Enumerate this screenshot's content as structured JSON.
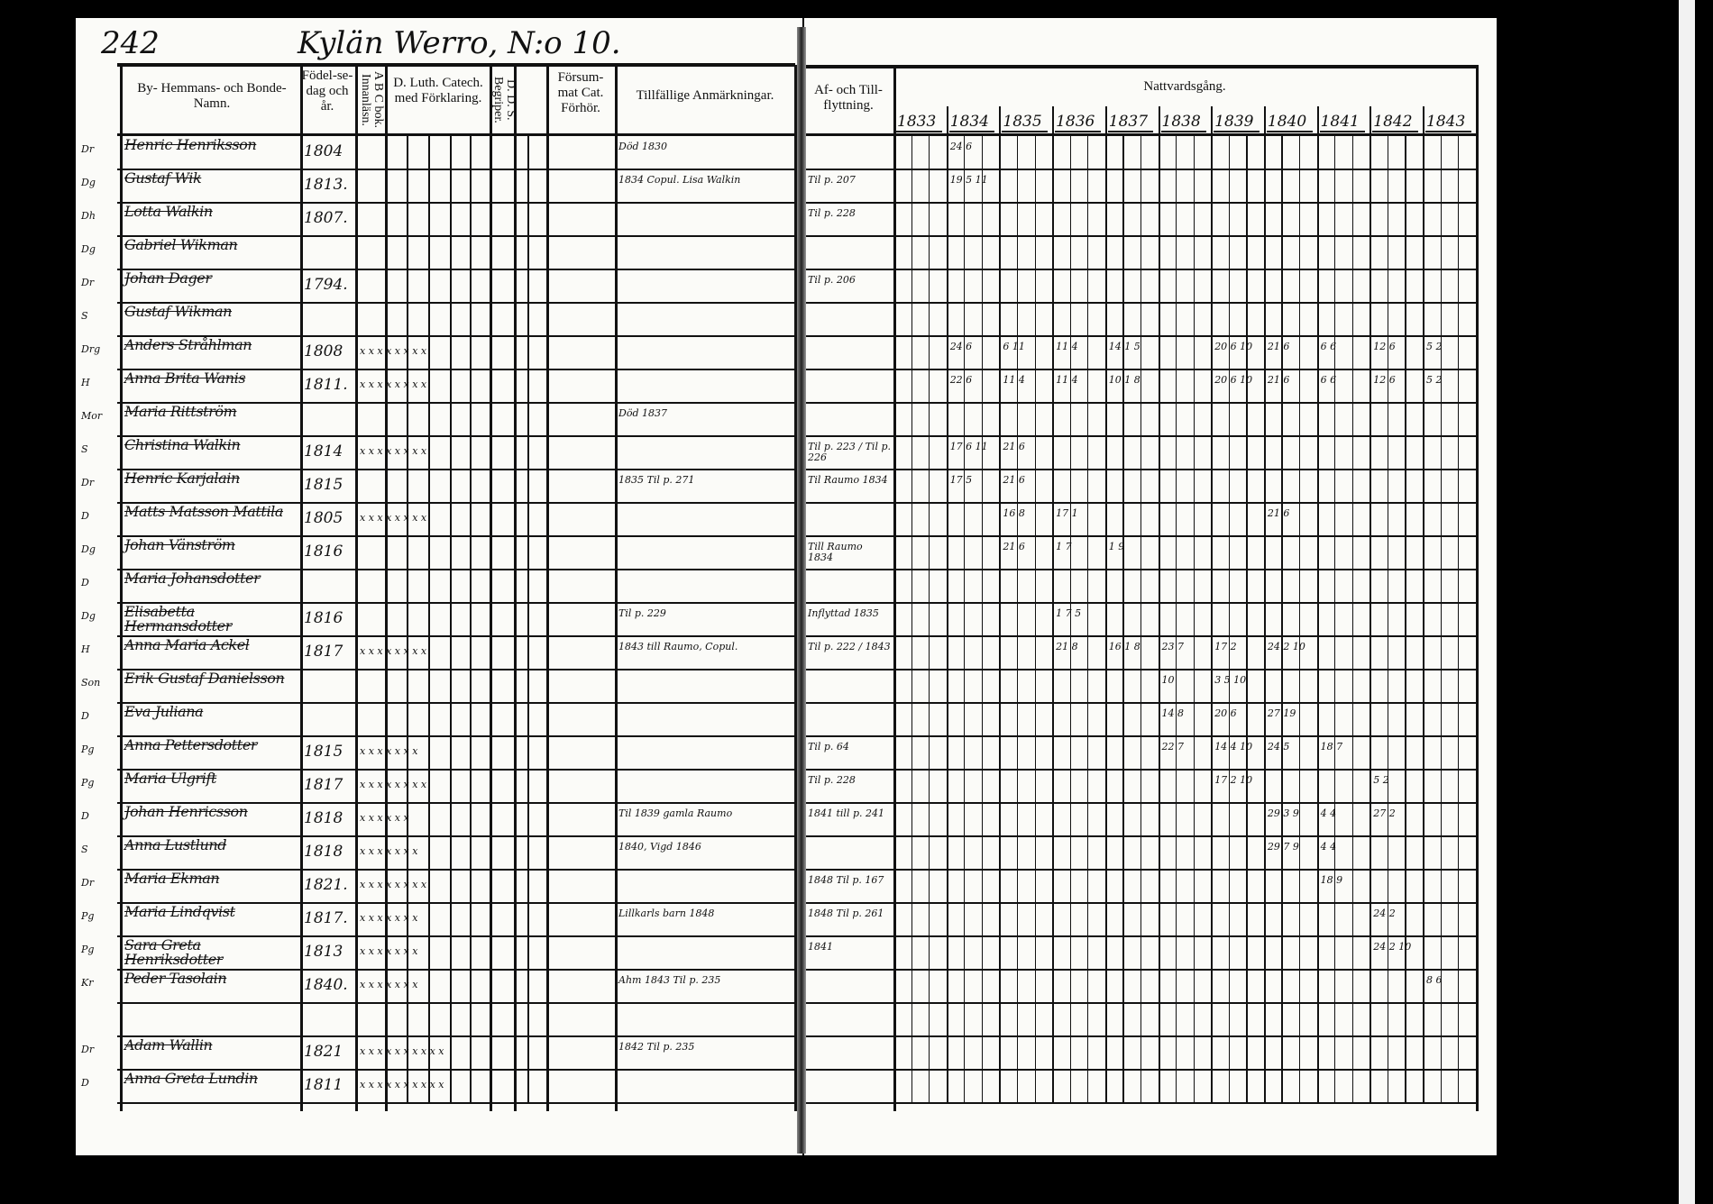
{
  "page_number": "242",
  "heading_handwritten": "Kylän Werro, N:o 10.",
  "left_headers": {
    "name": "By- Hemmans- och Bonde-Namn.",
    "birth": "Födel-se-dag och år.",
    "abc": "A B C bok. Innanläsn.",
    "catech": "D. Luth. Catech. med Förklaring.",
    "dds": "D. D. S. Begriper.",
    "missed": "Försum-mat Cat. Förhör.",
    "remarks": "Tillfällige Anmärkningar."
  },
  "right_headers": {
    "moves": "Af- och Till-flyttning.",
    "communion": "Nattvardsgång.",
    "years": [
      "1833",
      "1834",
      "1835",
      "1836",
      "1837",
      "1838",
      "1839",
      "1840",
      "1841",
      "1842",
      "1843"
    ]
  },
  "rows": [
    {
      "prefix": "Dr",
      "name": "Henric Henriksson",
      "birth": "1804",
      "marks": "",
      "remark": "Död 1830",
      "move": "",
      "comm": {
        "1": "24 6"
      }
    },
    {
      "prefix": "Dg",
      "name": "Gustaf Wik",
      "birth": "1813.",
      "marks": "",
      "remark": "1834 Copul. Lisa Walkin",
      "move": "Til p. 207",
      "comm": {
        "1": "19 5 11"
      }
    },
    {
      "prefix": "Dh",
      "name": "Lotta Walkin",
      "birth": "1807.",
      "marks": "",
      "remark": "",
      "move": "Til p. 228",
      "comm": {}
    },
    {
      "prefix": "Dg",
      "name": "Gabriel Wikman",
      "birth": "",
      "marks": "",
      "remark": "",
      "move": "",
      "comm": {}
    },
    {
      "prefix": "Dr",
      "name": "Johan Dager",
      "birth": "1794.",
      "marks": "",
      "remark": "",
      "move": "Til p. 206",
      "comm": {}
    },
    {
      "prefix": "S",
      "name": "Gustaf Wikman",
      "birth": "",
      "marks": "",
      "remark": "",
      "move": "",
      "comm": {}
    },
    {
      "prefix": "Drg",
      "name": "Anders Stråhlman",
      "birth": "1808",
      "marks": "x x x x x x x x",
      "remark": "",
      "move": "",
      "comm": {
        "1": "24 6",
        "2": "6 11",
        "3": "11 4",
        "4": "14 1 5",
        "6": "20 6 10",
        "7": "21 6",
        "8": "6 6",
        "9": "12 6",
        "10": "5 2"
      }
    },
    {
      "prefix": "H",
      "name": "Anna Brita Wanis",
      "birth": "1811.",
      "marks": "x x x x x x x x",
      "remark": "",
      "move": "",
      "comm": {
        "1": "22 6",
        "2": "11 4",
        "3": "11 4",
        "4": "10 1 8",
        "6": "20 6 10",
        "7": "21 6",
        "8": "6 6",
        "9": "12 6",
        "10": "5 2"
      }
    },
    {
      "prefix": "Mor",
      "name": "Maria Rittström",
      "birth": "",
      "marks": "",
      "remark": "Död 1837",
      "move": "",
      "comm": {}
    },
    {
      "prefix": "S",
      "name": "Christina Walkin",
      "birth": "1814",
      "marks": "x x x x x x x x",
      "remark": "",
      "move": "Til p. 223 / Til p. 226",
      "comm": {
        "1": "17 6 11",
        "2": "21 6"
      }
    },
    {
      "prefix": "Dr",
      "name": "Henric Karjalain",
      "birth": "1815",
      "marks": "",
      "remark": "1835 Til p. 271",
      "move": "Til Raumo 1834",
      "comm": {
        "1": "17 5",
        "2": "21 6"
      }
    },
    {
      "prefix": "D",
      "name": "Matts Matsson Mattila",
      "birth": "1805",
      "marks": "x x x x x x x x",
      "remark": "",
      "move": "",
      "comm": {
        "2": "16 8",
        "3": "17 1",
        "7": "21 6"
      }
    },
    {
      "prefix": "Dg",
      "name": "Johan Vänström",
      "birth": "1816",
      "marks": "",
      "remark": "",
      "move": "Till Raumo 1834",
      "comm": {
        "2": "21 6",
        "3": "1 7",
        "4": "1 9"
      }
    },
    {
      "prefix": "D",
      "name": "Maria Johansdotter",
      "birth": "",
      "marks": "",
      "remark": "",
      "move": "",
      "comm": {}
    },
    {
      "prefix": "Dg",
      "name": "Elisabetta Hermansdotter",
      "birth": "1816",
      "marks": "",
      "remark": "Til p. 229",
      "move": "Inflyttad 1835",
      "comm": {
        "3": "1 7 5"
      }
    },
    {
      "prefix": "H",
      "name": "Anna Maria Ackel",
      "birth": "1817",
      "marks": "x x x x x x x x",
      "remark": "1843 till Raumo, Copul.",
      "move": "Til p. 222 / 1843",
      "comm": {
        "3": "21 8",
        "4": "16 1 8",
        "5": "23 7",
        "6": "17 2",
        "7": "24 2 10"
      }
    },
    {
      "prefix": "Son",
      "name": "Erik Gustaf Danielsson",
      "birth": "",
      "marks": "",
      "remark": "",
      "move": "",
      "comm": {
        "5": "10",
        "6": "3 5 10"
      }
    },
    {
      "prefix": "D",
      "name": "Eva Juliana",
      "birth": "",
      "marks": "",
      "remark": "",
      "move": "",
      "comm": {
        "5": "14 8",
        "6": "20 6",
        "7": "27 19"
      }
    },
    {
      "prefix": "Pg",
      "name": "Anna Pettersdotter",
      "birth": "1815",
      "marks": "x x x x x x x",
      "remark": "",
      "move": "Til p. 64",
      "comm": {
        "5": "22 7",
        "6": "14 4 10",
        "7": "24 5",
        "8": "18 7"
      }
    },
    {
      "prefix": "Pg",
      "name": "Maria Ulgrift",
      "birth": "1817",
      "marks": "x x x x x x x x",
      "remark": "",
      "move": "Til p. 228",
      "comm": {
        "6": "17 2 10",
        "9": "5 2"
      }
    },
    {
      "prefix": "D",
      "name": "Johan Henricsson",
      "birth": "1818",
      "marks": "x x x x x x",
      "remark": "Til 1839 gamla Raumo",
      "move": "1841 till p. 241",
      "comm": {
        "7": "29 3 9",
        "8": "4 4",
        "9": "27 2"
      }
    },
    {
      "prefix": "S",
      "name": "Anna Lustlund",
      "birth": "1818",
      "marks": "x x x x x x x",
      "remark": "1840, Vigd 1846",
      "move": "",
      "comm": {
        "7": "29 7 9",
        "8": "4 4"
      }
    },
    {
      "prefix": "Dr",
      "name": "Maria Ekman",
      "birth": "1821.",
      "marks": "x x x x x x x x",
      "remark": "",
      "move": "1848 Til p. 167",
      "comm": {
        "8": "18 9"
      }
    },
    {
      "prefix": "Pg",
      "name": "Maria Lindqvist",
      "birth": "1817.",
      "marks": "x x x x x x x",
      "remark": "Lillkarls barn 1848",
      "move": "1848 Til p. 261",
      "comm": {
        "9": "24 2"
      }
    },
    {
      "prefix": "Pg",
      "name": "Sara Greta Henriksdotter",
      "birth": "1813",
      "marks": "x x x x x x x",
      "remark": "",
      "move": "1841",
      "comm": {
        "9": "24 2 10"
      }
    },
    {
      "prefix": "Kr",
      "name": "Peder Tasolain",
      "birth": "1840.",
      "marks": "x x x x x x x",
      "remark": "Ahm 1843 Til p. 235",
      "move": "",
      "comm": {
        "10": "8 6"
      }
    },
    {
      "prefix": "",
      "name": "",
      "birth": "",
      "marks": "",
      "remark": "",
      "move": "",
      "comm": {}
    },
    {
      "prefix": "Dr",
      "name": "Adam Wallin",
      "birth": "1821",
      "marks": "x x x x x x x x x x",
      "remark": "1842 Til p. 235",
      "move": "",
      "comm": {}
    },
    {
      "prefix": "D",
      "name": "Anna Greta Lundin",
      "birth": "1811",
      "marks": "x x x x x x x x x x",
      "remark": "",
      "move": "",
      "comm": {}
    }
  ]
}
